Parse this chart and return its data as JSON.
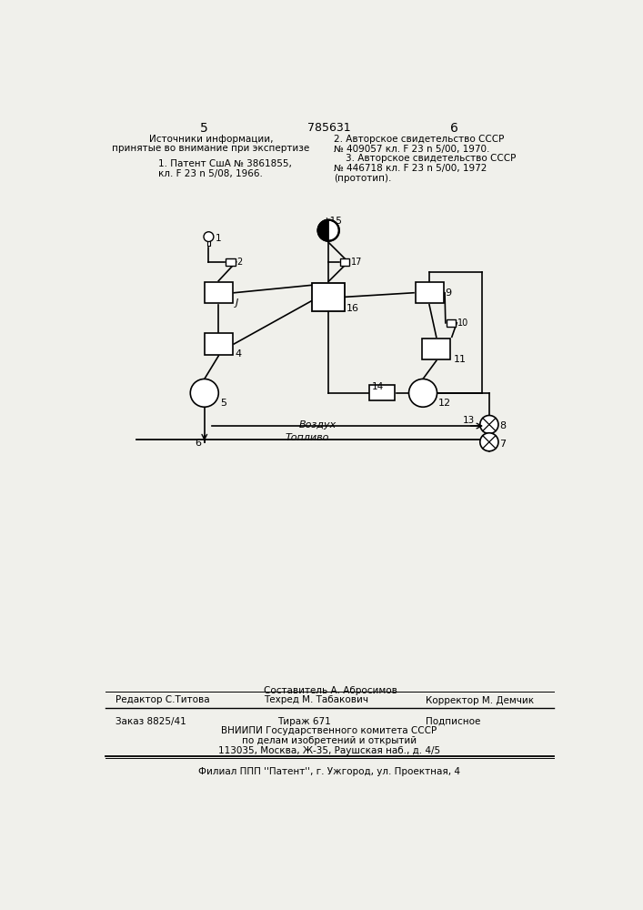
{
  "bg_color": "#f0f0eb",
  "page_header": {
    "left_num": "5",
    "center_num": "785631",
    "right_num": "6"
  },
  "left_text_l1": "Источники информации,",
  "left_text_l2": "принятые во внимание при экспертизе",
  "left_text_l3": "",
  "left_text_l4": "1. Патент СшА № 3861855,",
  "left_text_l5": "кл. F 23 n 5/08, 1966.",
  "right_text_l1": "2. Авторское свидетельство СССР",
  "right_text_l2": "№ 409057 кл. F 23 n 5/00, 1970.",
  "right_text_l3": "    3. Авторское свидетельство СССР",
  "right_text_l4": "№ 446718 кл. F 23 n 5/00, 1972",
  "right_text_l5": "(прототип).",
  "footer_editor": "Редактор С.Титова",
  "footer_compiler_l1": "Составитель А. Абросимов",
  "footer_compiler_l2": "Техред М. Табакович",
  "footer_corrector": "Корректор М. Демчик",
  "footer_order": "Заказ 8825/41",
  "footer_copies": "Тираж 671",
  "footer_subscription": "Подписное",
  "footer_org1": "ВНИИПИ Государственного комитета СССР",
  "footer_org2": "по делам изобретений и открытий",
  "footer_org3": "113035, Москва, Ж-35, Раушская наб., д. 4/5",
  "footer_branch": "Филиал ППП ''Патент'', г. Ужгород, ул. Проектная, 4"
}
